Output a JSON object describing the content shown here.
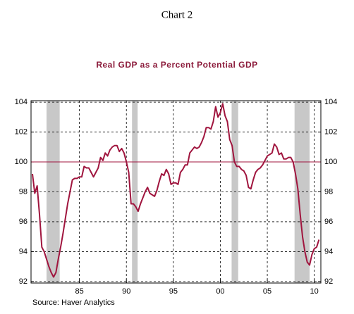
{
  "chart_data": {
    "type": "line",
    "title": "Chart 2",
    "subtitle": "Real GDP as a Percent Potential GDP",
    "source": "Source: Haver Analytics",
    "x": [
      1980,
      1980.25,
      1980.5,
      1980.75,
      1981,
      1981.25,
      1981.5,
      1981.75,
      1982,
      1982.25,
      1982.5,
      1982.75,
      1983,
      1983.25,
      1983.5,
      1983.75,
      1984,
      1984.25,
      1984.5,
      1984.75,
      1985,
      1985.25,
      1985.5,
      1985.75,
      1986,
      1986.25,
      1986.5,
      1986.75,
      1987,
      1987.25,
      1987.5,
      1987.75,
      1988,
      1988.25,
      1988.5,
      1988.75,
      1989,
      1989.25,
      1989.5,
      1989.75,
      1990,
      1990.25,
      1990.5,
      1990.75,
      1991,
      1991.25,
      1991.5,
      1991.75,
      1992,
      1992.25,
      1992.5,
      1992.75,
      1993,
      1993.25,
      1993.5,
      1993.75,
      1994,
      1994.25,
      1994.5,
      1994.75,
      1995,
      1995.25,
      1995.5,
      1995.75,
      1996,
      1996.25,
      1996.5,
      1996.75,
      1997,
      1997.25,
      1997.5,
      1997.75,
      1998,
      1998.25,
      1998.5,
      1998.75,
      1999,
      1999.25,
      1999.5,
      1999.75,
      2000,
      2000.25,
      2000.5,
      2000.75,
      2001,
      2001.25,
      2001.5,
      2001.75,
      2002,
      2002.25,
      2002.5,
      2002.75,
      2003,
      2003.25,
      2003.5,
      2003.75,
      2004,
      2004.25,
      2004.5,
      2004.75,
      2005,
      2005.25,
      2005.5,
      2005.75,
      2006,
      2006.25,
      2006.5,
      2006.75,
      2007,
      2007.25,
      2007.5,
      2007.75,
      2008,
      2008.25,
      2008.5,
      2008.75,
      2009,
      2009.25,
      2009.5,
      2009.75,
      2010,
      2010.25,
      2010.5
    ],
    "series": [
      {
        "color": "#a0153e",
        "values": [
          99.2,
          97.9,
          98.4,
          96.5,
          94.3,
          94.0,
          93.5,
          93.0,
          92.6,
          92.3,
          92.6,
          93.5,
          94.3,
          95.2,
          96.2,
          97.2,
          98.0,
          98.8,
          98.9,
          98.9,
          99.0,
          99.0,
          99.7,
          99.6,
          99.6,
          99.3,
          99.0,
          99.3,
          99.6,
          100.3,
          100.1,
          100.6,
          100.4,
          100.8,
          101.0,
          101.1,
          101.1,
          100.7,
          100.9,
          100.6,
          100.0,
          99.3,
          97.2,
          97.2,
          97.0,
          96.7,
          97.2,
          97.6,
          98.0,
          98.3,
          97.9,
          97.8,
          97.7,
          98.1,
          98.7,
          99.2,
          99.1,
          99.5,
          99.2,
          98.5,
          98.6,
          98.6,
          98.5,
          99.3,
          99.5,
          99.8,
          99.8,
          100.6,
          100.8,
          101.0,
          100.9,
          101.0,
          101.3,
          101.7,
          102.3,
          102.3,
          102.2,
          102.7,
          103.7,
          103.0,
          103.3,
          103.9,
          103.1,
          102.7,
          101.5,
          101.1,
          100.0,
          99.7,
          99.7,
          99.5,
          99.4,
          99.1,
          98.3,
          98.2,
          98.8,
          99.3,
          99.5,
          99.6,
          99.8,
          100.1,
          100.4,
          100.5,
          100.6,
          101.2,
          101.0,
          100.5,
          100.6,
          100.2,
          100.2,
          100.3,
          100.3,
          100.0,
          99.2,
          98.2,
          96.5,
          95.0,
          94.0,
          93.3,
          93.1,
          93.8,
          94.2,
          94.3,
          94.8
        ]
      }
    ],
    "recessions": [
      [
        1981.5,
        1982.9
      ],
      [
        1990.6,
        1991.2
      ],
      [
        2001.2,
        2001.9
      ],
      [
        2007.9,
        2009.5
      ]
    ],
    "recession_color": "#c8c8c8",
    "reference_line": 100,
    "reference_color": "#a0153e",
    "xlim": [
      1979.85,
      2010.7
    ],
    "xticks": [
      {
        "value": 1985,
        "label": "85"
      },
      {
        "value": 1990,
        "label": "90"
      },
      {
        "value": 1995,
        "label": "95"
      },
      {
        "value": 2000,
        "label": "00"
      },
      {
        "value": 2005,
        "label": "05"
      },
      {
        "value": 2010,
        "label": "10"
      }
    ],
    "ylim": [
      91.9,
      104.1
    ],
    "yticks": [
      92,
      94,
      96,
      98,
      100,
      102,
      104
    ],
    "mirror_y_axis": true,
    "grid": true
  }
}
